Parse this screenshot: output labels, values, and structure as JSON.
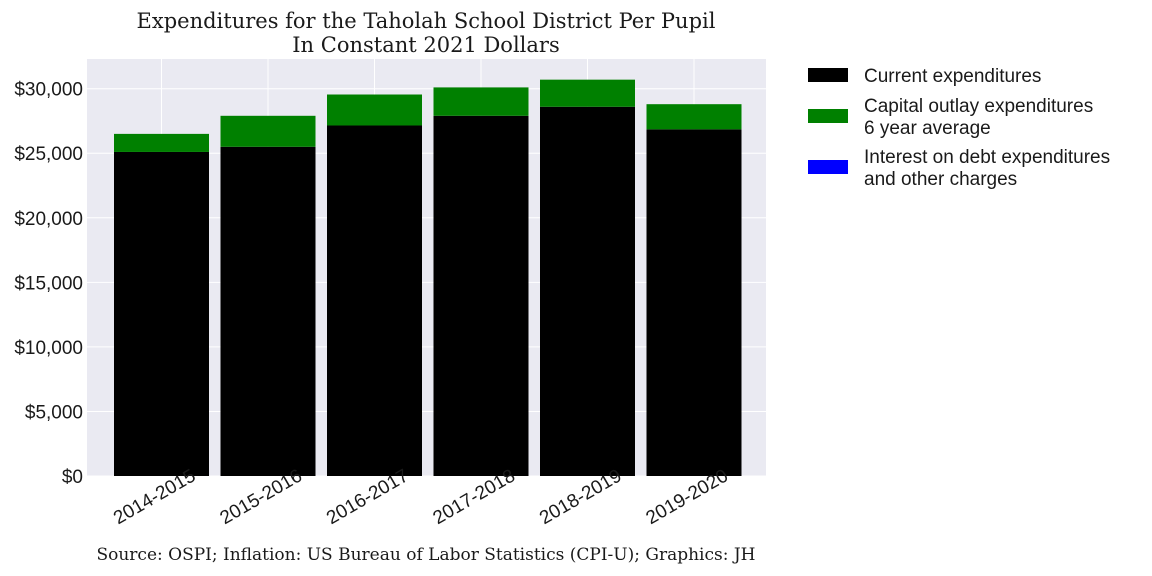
{
  "chart_data": {
    "type": "bar",
    "stacked": true,
    "title_lines": [
      "Expenditures for the Taholah School District Per Pupil",
      "In Constant 2021 Dollars"
    ],
    "xlabel": "",
    "ylabel": "",
    "categories": [
      "2014-2015",
      "2015-2016",
      "2016-2017",
      "2017-2018",
      "2018-2019",
      "2019-2020"
    ],
    "series": [
      {
        "name": "Current expenditures",
        "color": "#000000",
        "values": [
          25100,
          25500,
          27150,
          27900,
          28600,
          26850
        ]
      },
      {
        "name_lines": [
          "Capital outlay expenditures",
          "6 year average"
        ],
        "color": "#008000",
        "values": [
          1400,
          2400,
          2400,
          2200,
          2100,
          1950
        ]
      },
      {
        "name_lines": [
          "Interest on debt expenditures",
          "and other charges"
        ],
        "color": "#0000ff",
        "values": [
          0,
          0,
          0,
          0,
          0,
          0
        ]
      }
    ],
    "ylim": [
      0,
      32300
    ],
    "yticks": [
      0,
      5000,
      10000,
      15000,
      20000,
      25000,
      30000
    ],
    "ytick_labels": [
      "$0",
      "$5,000",
      "$10,000",
      "$15,000",
      "$20,000",
      "$25,000",
      "$30,000"
    ],
    "grid": true,
    "legend_position": "outside-right",
    "source": "Source: OSPI; Inflation: US Bureau of Labor Statistics (CPI-U); Graphics: JH"
  }
}
